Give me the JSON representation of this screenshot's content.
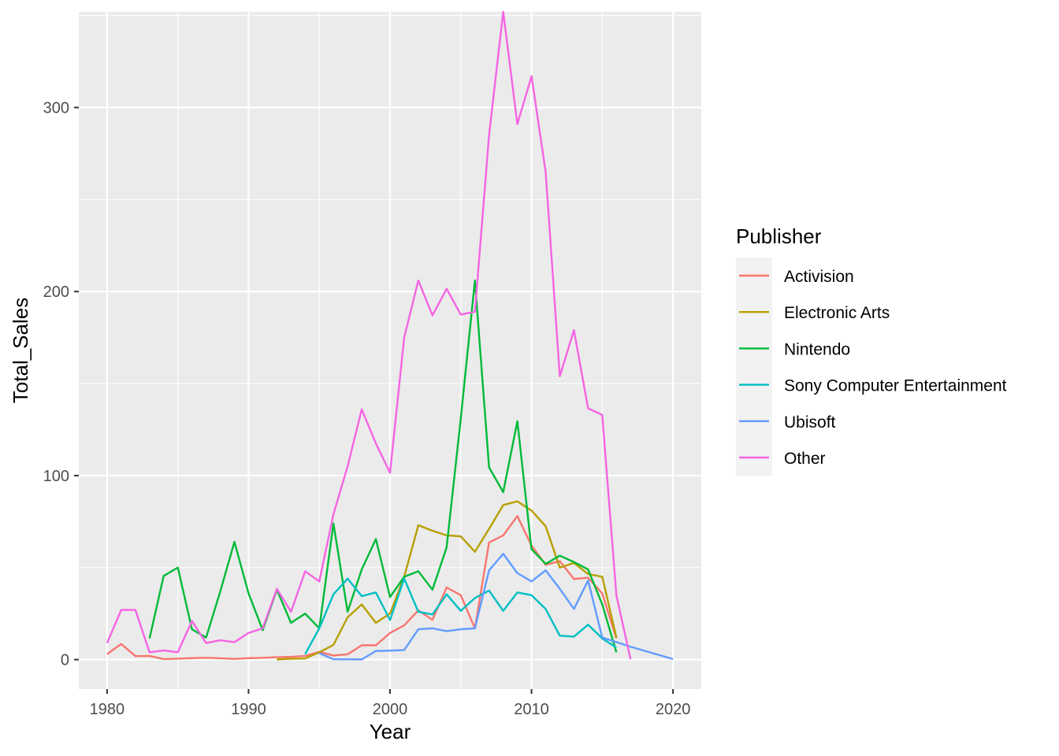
{
  "chart_data": {
    "type": "line",
    "title": "",
    "xlabel": "Year",
    "ylabel": "Total_Sales",
    "xlim": [
      1978,
      2022
    ],
    "ylim": [
      -16,
      352
    ],
    "x_ticks": [
      1980,
      1990,
      2000,
      2010,
      2020
    ],
    "y_ticks": [
      0,
      100,
      200,
      300
    ],
    "grid": true,
    "legend": {
      "title": "Publisher",
      "position": "right"
    },
    "series": [
      {
        "name": "Activision",
        "color": "#F8766D",
        "points": [
          [
            1980,
            3.0
          ],
          [
            1981,
            8.5
          ],
          [
            1982,
            1.9
          ],
          [
            1983,
            2.0
          ],
          [
            1984,
            0.3
          ],
          [
            1985,
            0.5
          ],
          [
            1986,
            0.8
          ],
          [
            1987,
            1.0
          ],
          [
            1988,
            0.7
          ],
          [
            1989,
            0.4
          ],
          [
            1990,
            0.8
          ],
          [
            1991,
            1.0
          ],
          [
            1992,
            1.3
          ],
          [
            1993,
            1.5
          ],
          [
            1994,
            2.0
          ],
          [
            1995,
            4.2
          ],
          [
            1996,
            2.2
          ],
          [
            1997,
            2.9
          ],
          [
            1998,
            7.8
          ],
          [
            1999,
            7.8
          ],
          [
            2000,
            14.5
          ],
          [
            2001,
            18.6
          ],
          [
            2002,
            26.8
          ],
          [
            2003,
            21.6
          ],
          [
            2004,
            39.2
          ],
          [
            2005,
            35.0
          ],
          [
            2006,
            17.0
          ],
          [
            2007,
            63.6
          ],
          [
            2008,
            67.5
          ],
          [
            2009,
            78.0
          ],
          [
            2010,
            62.0
          ],
          [
            2011,
            51.5
          ],
          [
            2012,
            53.5
          ],
          [
            2013,
            43.8
          ],
          [
            2014,
            44.5
          ],
          [
            2015,
            36.0
          ],
          [
            2016,
            11.5
          ]
        ]
      },
      {
        "name": "Electronic Arts",
        "color": "#B79F00",
        "points": [
          [
            1992,
            0.1
          ],
          [
            1993,
            0.5
          ],
          [
            1994,
            0.6
          ],
          [
            1995,
            4.0
          ],
          [
            1996,
            8.0
          ],
          [
            1997,
            23.0
          ],
          [
            1998,
            30.0
          ],
          [
            1999,
            20.0
          ],
          [
            2000,
            25.0
          ],
          [
            2001,
            45.0
          ],
          [
            2002,
            73.0
          ],
          [
            2003,
            70.0
          ],
          [
            2004,
            67.5
          ],
          [
            2005,
            67.0
          ],
          [
            2006,
            58.6
          ],
          [
            2007,
            71.0
          ],
          [
            2008,
            84.0
          ],
          [
            2009,
            86.0
          ],
          [
            2010,
            81.0
          ],
          [
            2011,
            72.5
          ],
          [
            2012,
            50.0
          ],
          [
            2013,
            52.5
          ],
          [
            2014,
            46.5
          ],
          [
            2015,
            45.0
          ],
          [
            2016,
            12.0
          ]
        ]
      },
      {
        "name": "Nintendo",
        "color": "#00BA38",
        "points": [
          [
            1983,
            11.5
          ],
          [
            1984,
            45.5
          ],
          [
            1985,
            50.0
          ],
          [
            1986,
            16.5
          ],
          [
            1987,
            12.0
          ],
          [
            1988,
            37.0
          ],
          [
            1989,
            64.0
          ],
          [
            1990,
            36.0
          ],
          [
            1991,
            16.0
          ],
          [
            1992,
            38.0
          ],
          [
            1993,
            20.0
          ],
          [
            1994,
            25.0
          ],
          [
            1995,
            17.0
          ],
          [
            1996,
            74.0
          ],
          [
            1997,
            26.0
          ],
          [
            1998,
            49.0
          ],
          [
            1999,
            65.5
          ],
          [
            2000,
            34.0
          ],
          [
            2001,
            45.0
          ],
          [
            2002,
            48.0
          ],
          [
            2003,
            38.0
          ],
          [
            2004,
            61.0
          ],
          [
            2005,
            131.0
          ],
          [
            2006,
            206.0
          ],
          [
            2007,
            104.5
          ],
          [
            2008,
            91.0
          ],
          [
            2009,
            129.5
          ],
          [
            2010,
            60.0
          ],
          [
            2011,
            52.0
          ],
          [
            2012,
            56.5
          ],
          [
            2013,
            53.0
          ],
          [
            2014,
            49.0
          ],
          [
            2015,
            30.0
          ],
          [
            2016,
            4.0
          ]
        ]
      },
      {
        "name": "Sony Computer Entertainment",
        "color": "#00BFC4",
        "points": [
          [
            1994,
            3.0
          ],
          [
            1995,
            17.0
          ],
          [
            1996,
            35.5
          ],
          [
            1997,
            44.0
          ],
          [
            1998,
            34.5
          ],
          [
            1999,
            36.5
          ],
          [
            2000,
            21.5
          ],
          [
            2001,
            44.0
          ],
          [
            2002,
            26.0
          ],
          [
            2003,
            24.5
          ],
          [
            2004,
            35.5
          ],
          [
            2005,
            26.5
          ],
          [
            2006,
            33.5
          ],
          [
            2007,
            37.5
          ],
          [
            2008,
            26.5
          ],
          [
            2009,
            36.5
          ],
          [
            2010,
            35.0
          ],
          [
            2011,
            27.5
          ],
          [
            2012,
            13.0
          ],
          [
            2013,
            12.5
          ],
          [
            2014,
            19.0
          ],
          [
            2015,
            11.5
          ],
          [
            2016,
            6.5
          ]
        ]
      },
      {
        "name": "Ubisoft",
        "color": "#619CFF",
        "points": [
          [
            1995,
            3.5
          ],
          [
            1996,
            0.2
          ],
          [
            1997,
            0.2
          ],
          [
            1998,
            0.1
          ],
          [
            1999,
            4.7
          ],
          [
            2000,
            4.9
          ],
          [
            2001,
            5.2
          ],
          [
            2002,
            16.5
          ],
          [
            2003,
            17.0
          ],
          [
            2004,
            15.5
          ],
          [
            2005,
            16.5
          ],
          [
            2006,
            17.0
          ],
          [
            2007,
            48.5
          ],
          [
            2008,
            57.5
          ],
          [
            2009,
            47.0
          ],
          [
            2010,
            42.5
          ],
          [
            2011,
            48.5
          ],
          [
            2012,
            38.5
          ],
          [
            2013,
            27.5
          ],
          [
            2014,
            43.0
          ],
          [
            2015,
            12.0
          ],
          [
            2016,
            9.5
          ],
          [
            2017,
            7.0
          ],
          [
            2020,
            0.3
          ]
        ]
      },
      {
        "name": "Other",
        "color": "#F564E3",
        "points": [
          [
            1980,
            9.0
          ],
          [
            1981,
            27.0
          ],
          [
            1982,
            27.0
          ],
          [
            1983,
            4.0
          ],
          [
            1984,
            5.0
          ],
          [
            1985,
            4.0
          ],
          [
            1986,
            21.0
          ],
          [
            1987,
            9.0
          ],
          [
            1988,
            10.5
          ],
          [
            1989,
            9.5
          ],
          [
            1990,
            14.5
          ],
          [
            1991,
            17.0
          ],
          [
            1992,
            38.5
          ],
          [
            1993,
            26.0
          ],
          [
            1994,
            48.0
          ],
          [
            1995,
            42.5
          ],
          [
            1996,
            79.0
          ],
          [
            1997,
            105.0
          ],
          [
            1998,
            136.0
          ],
          [
            1999,
            117.5
          ],
          [
            2000,
            101.5
          ],
          [
            2001,
            175.0
          ],
          [
            2002,
            206.0
          ],
          [
            2003,
            187.0
          ],
          [
            2004,
            201.5
          ],
          [
            2005,
            187.5
          ],
          [
            2006,
            189.0
          ],
          [
            2007,
            285.0
          ],
          [
            2008,
            352.0
          ],
          [
            2009,
            291.0
          ],
          [
            2010,
            317.0
          ],
          [
            2011,
            265.0
          ],
          [
            2012,
            154.0
          ],
          [
            2013,
            179.0
          ],
          [
            2014,
            136.5
          ],
          [
            2015,
            133.0
          ],
          [
            2016,
            35.0
          ],
          [
            2017,
            0.2
          ]
        ]
      }
    ]
  }
}
